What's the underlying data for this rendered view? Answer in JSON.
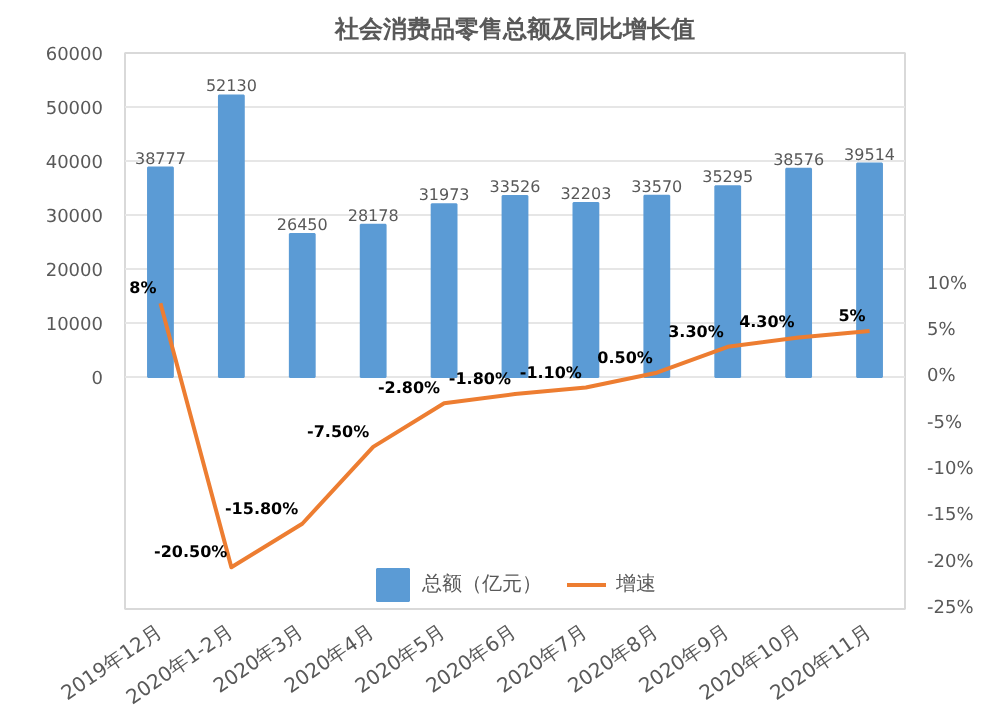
{
  "chart_data": {
    "type": "bar",
    "title": "社会消费品零售总额及同比增长值",
    "categories": [
      "2019年12月",
      "2020年1-2月",
      "2020年3月",
      "2020年4月",
      "2020年5月",
      "2020年6月",
      "2020年7月",
      "2020年8月",
      "2020年9月",
      "2020年10月",
      "2020年11月"
    ],
    "series": [
      {
        "name": "总额（亿元）",
        "color": "#5b9bd5",
        "values": [
          38777,
          52130,
          26450,
          28178,
          31973,
          33526,
          32203,
          33570,
          35295,
          38576,
          39514
        ],
        "value_labels": [
          "38777",
          "52130",
          "26450",
          "28178",
          "31973",
          "33526",
          "32203",
          "33570",
          "35295",
          "38576",
          "39514"
        ]
      },
      {
        "name": "增速",
        "type": "line",
        "axis": "y2",
        "color": "#ed7d31",
        "values": [
          8.0,
          -20.5,
          -15.8,
          -7.5,
          -2.8,
          -1.8,
          -1.1,
          0.5,
          3.3,
          4.3,
          5.0
        ],
        "value_labels": [
          "8%",
          "-20.50%",
          "-15.80%",
          "-7.50%",
          "-2.80%",
          "-1.80%",
          "-1.10%",
          "0.50%",
          "3.30%",
          "4.30%",
          "5%"
        ]
      }
    ],
    "ylim": [
      -43000,
      60000
    ],
    "yticks": [
      0,
      10000,
      20000,
      30000,
      40000,
      50000,
      60000
    ],
    "y2lim": [
      -25,
      35
    ],
    "y2ticks": [
      {
        "value": -25,
        "label": "-25%"
      },
      {
        "value": -20,
        "label": "-20%"
      },
      {
        "value": -15,
        "label": "-15%"
      },
      {
        "value": -10,
        "label": "-10%"
      },
      {
        "value": -5,
        "label": "-5%"
      },
      {
        "value": 0,
        "label": "0%"
      },
      {
        "value": 5,
        "label": "5%"
      },
      {
        "value": 10,
        "label": "10%"
      }
    ],
    "grid": "y",
    "legend": "bottom",
    "line_style": "solid"
  }
}
